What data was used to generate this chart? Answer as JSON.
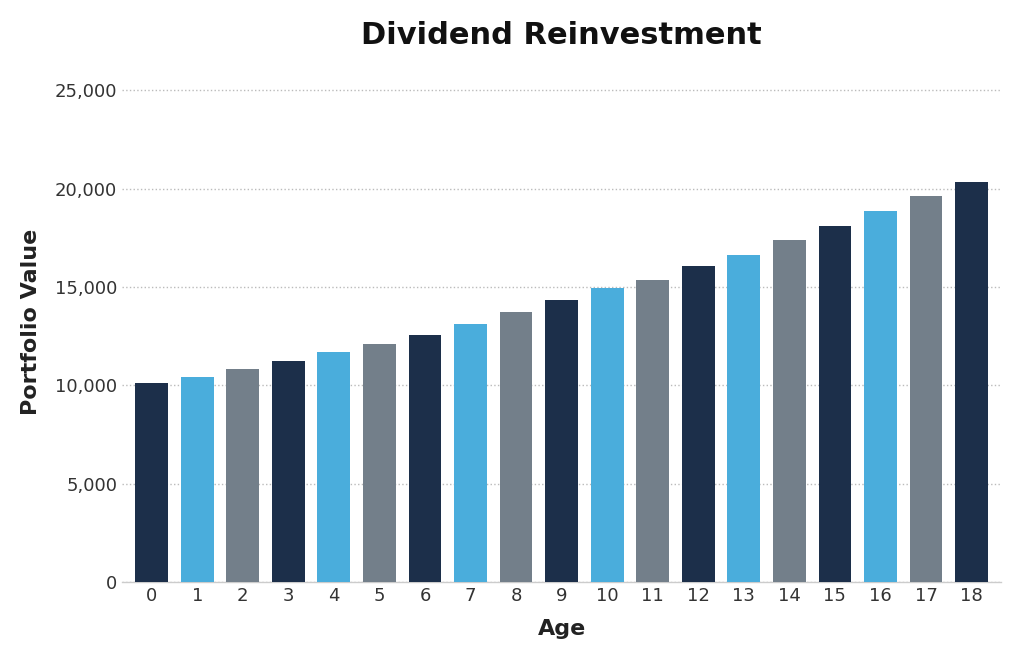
{
  "title": "Dividend Reinvestment",
  "xlabel": "Age",
  "ylabel": "Portfolio Value",
  "ages": [
    0,
    1,
    2,
    3,
    4,
    5,
    6,
    7,
    8,
    9,
    10,
    11,
    12,
    13,
    14,
    15,
    16,
    17,
    18
  ],
  "values": [
    10100,
    10450,
    10850,
    11250,
    11700,
    12100,
    12550,
    13100,
    13750,
    14350,
    14950,
    15350,
    16050,
    16600,
    17400,
    18100,
    18850,
    19600,
    20350
  ],
  "colors": [
    "#1c2f4a",
    "#4aaddc",
    "#737f8a",
    "#1c2f4a",
    "#4aaddc",
    "#737f8a",
    "#1c2f4a",
    "#4aaddc",
    "#737f8a",
    "#1c2f4a",
    "#4aaddc",
    "#737f8a",
    "#1c2f4a",
    "#4aaddc",
    "#737f8a",
    "#1c2f4a",
    "#4aaddc",
    "#737f8a",
    "#1c2f4a"
  ],
  "ylim": [
    0,
    26500
  ],
  "yticks": [
    0,
    5000,
    10000,
    15000,
    20000,
    25000
  ],
  "ytick_labels": [
    "0",
    "5,000",
    "10,000",
    "15,000",
    "20,000",
    "25,000"
  ],
  "background_color": "#ffffff",
  "grid_color": "#bbbbbb",
  "title_fontsize": 22,
  "axis_label_fontsize": 16,
  "tick_fontsize": 13,
  "bar_width": 0.72
}
